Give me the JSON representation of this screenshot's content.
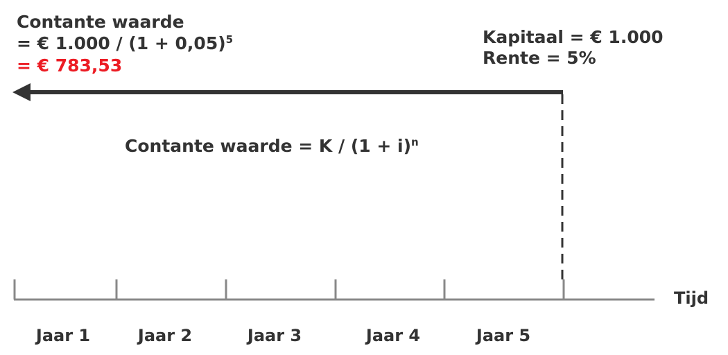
{
  "top_left": {
    "line1": "Contante waarde",
    "line2_main": "= € 1.000 / (1 + 0,05)",
    "line2_exp": "5",
    "line3": "= € 783,53"
  },
  "top_right": {
    "line1": "Kapitaal = € 1.000",
    "line2": "Rente = 5%"
  },
  "formula": {
    "main": "Contante waarde =  K / (1 + i)",
    "exp": "n"
  },
  "axis": {
    "label": "Tijd",
    "years": [
      "Jaar 1",
      "Jaar 2",
      "Jaar 3",
      "Jaar 4",
      "Jaar 5"
    ]
  },
  "colors": {
    "text": "#333333",
    "highlight": "#ec1c24",
    "arrow": "#333333",
    "axis": "#888888"
  }
}
